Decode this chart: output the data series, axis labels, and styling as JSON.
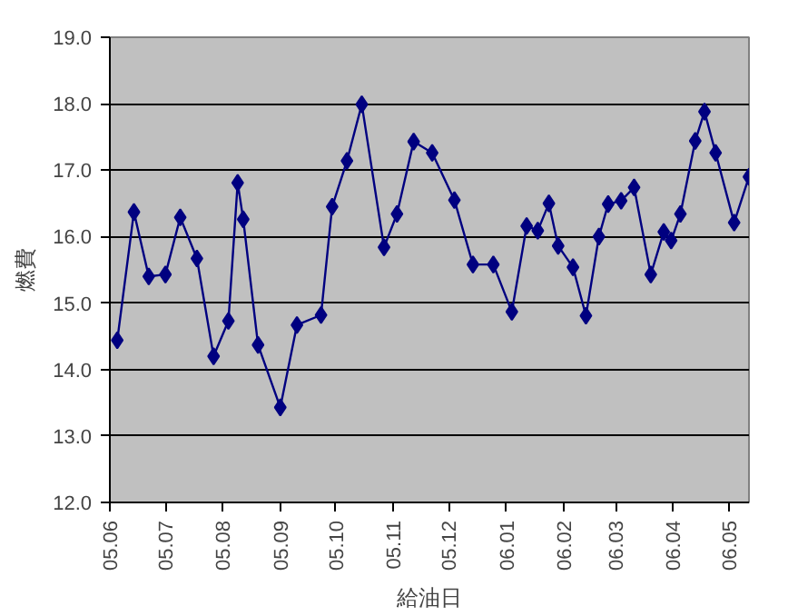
{
  "chart_data": {
    "type": "line",
    "xlabel": "給油日",
    "ylabel": "燃費",
    "x": [
      "2005-06-05",
      "2005-06-14",
      "2005-06-22",
      "2005-07-01",
      "2005-07-09",
      "2005-07-18",
      "2005-07-27",
      "2005-08-04",
      "2005-08-09",
      "2005-08-12",
      "2005-08-20",
      "2005-09-01",
      "2005-09-10",
      "2005-09-23",
      "2005-09-29",
      "2005-10-07",
      "2005-10-15",
      "2005-10-27",
      "2005-11-03",
      "2005-11-12",
      "2005-11-22",
      "2005-12-04",
      "2005-12-14",
      "2005-12-25",
      "2006-01-04",
      "2006-01-12",
      "2006-01-18",
      "2006-01-24",
      "2006-01-29",
      "2006-02-06",
      "2006-02-13",
      "2006-02-20",
      "2006-02-25",
      "2006-03-04",
      "2006-03-11",
      "2006-03-20",
      "2006-03-27",
      "2006-03-31",
      "2006-04-05",
      "2006-04-13",
      "2006-04-18",
      "2006-04-24",
      "2006-05-04",
      "2006-05-12"
    ],
    "series": [
      {
        "color": "#000080",
        "values": [
          14.44,
          16.37,
          15.4,
          15.43,
          16.29,
          15.67,
          14.2,
          14.73,
          16.81,
          16.26,
          14.37,
          13.43,
          14.67,
          14.82,
          16.45,
          17.14,
          17.99,
          15.84,
          16.34,
          17.43,
          17.26,
          16.55,
          15.58,
          15.58,
          14.87,
          16.16,
          16.09,
          16.5,
          15.86,
          15.54,
          14.81,
          16.0,
          16.49,
          16.54,
          16.74,
          15.43,
          16.07,
          15.94,
          16.34,
          17.44,
          17.88,
          17.26,
          16.21,
          16.9
        ]
      }
    ],
    "xlim": [
      "2005-06-01",
      "2006-05-12"
    ],
    "xticks": [
      {
        "value": "2005-06-01",
        "label": "05.06"
      },
      {
        "value": "2005-07-01",
        "label": "05.07"
      },
      {
        "value": "2005-08-01",
        "label": "05.08"
      },
      {
        "value": "2005-09-01",
        "label": "05.09"
      },
      {
        "value": "2005-10-01",
        "label": "05.10"
      },
      {
        "value": "2005-11-01",
        "label": "05.11"
      },
      {
        "value": "2005-12-01",
        "label": "05.12"
      },
      {
        "value": "2006-01-01",
        "label": "06.01"
      },
      {
        "value": "2006-02-01",
        "label": "06.02"
      },
      {
        "value": "2006-03-01",
        "label": "06.03"
      },
      {
        "value": "2006-04-01",
        "label": "06.04"
      },
      {
        "value": "2006-05-01",
        "label": "06.05"
      }
    ],
    "ylim": [
      12,
      19
    ],
    "yticks": [
      {
        "value": 12,
        "label": "12.0"
      },
      {
        "value": 13,
        "label": "13.0"
      },
      {
        "value": 14,
        "label": "14.0"
      },
      {
        "value": 15,
        "label": "15.0"
      },
      {
        "value": 16,
        "label": "16.0"
      },
      {
        "value": 17,
        "label": "17.0"
      },
      {
        "value": 18,
        "label": "18.0"
      },
      {
        "value": 19,
        "label": "19.0"
      }
    ],
    "grid": "y",
    "marker": "diamond",
    "line_style": "solid"
  }
}
